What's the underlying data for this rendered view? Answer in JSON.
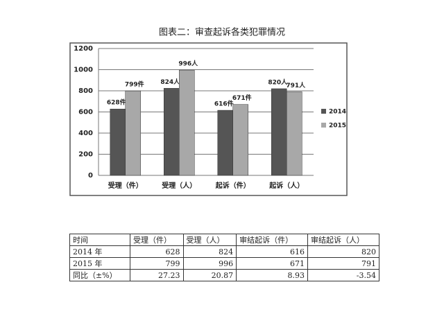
{
  "chart_data": {
    "type": "bar",
    "title": "图表二：审查起诉各类犯罪情况",
    "categories": [
      "受理（件）",
      "受理（人）",
      "起诉（件）",
      "起诉（人）"
    ],
    "series": [
      {
        "name": "2014",
        "color": "#555555",
        "values": [
          628,
          824,
          616,
          820
        ],
        "value_labels": [
          "628件",
          "824人",
          "616件",
          "820人"
        ]
      },
      {
        "name": "2015",
        "color": "#a8a8a8",
        "values": [
          799,
          996,
          671,
          791
        ],
        "value_labels": [
          "799件",
          "996人",
          "671件",
          "791人"
        ]
      }
    ],
    "ylim": [
      0,
      1200
    ],
    "yticks": [
      0,
      200,
      400,
      600,
      800,
      1000,
      1200
    ],
    "grid": true,
    "legend": "right"
  },
  "table": {
    "header": [
      "时间",
      "受理（件）",
      "受理（人）",
      "审结起诉（件）",
      "审结起诉（人）"
    ],
    "rows": [
      [
        "2014 年",
        628,
        824,
        616,
        820
      ],
      [
        "2015 年",
        799,
        996,
        671,
        791
      ],
      [
        "同比（±%）",
        27.23,
        20.87,
        8.93,
        -3.54
      ]
    ]
  }
}
